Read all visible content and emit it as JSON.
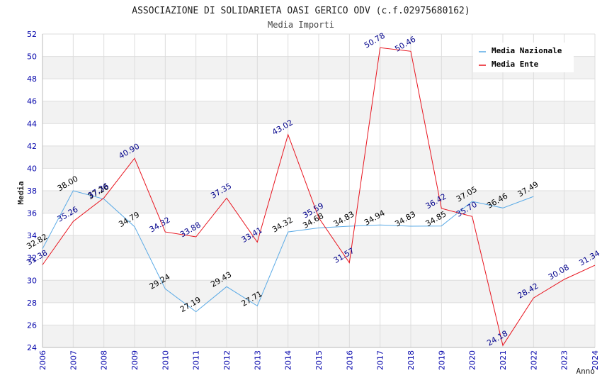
{
  "chart_data": {
    "type": "line",
    "title": "ASSOCIAZIONE DI SOLIDARIETA OASI GERICO ODV (c.f.02975680162)",
    "subtitle": "Media Importi",
    "xlabel": "Anno",
    "ylabel": "Media",
    "ylim": [
      24,
      52
    ],
    "yticks": [
      "24",
      "26",
      "28",
      "30",
      "32",
      "34",
      "36",
      "38",
      "40",
      "42",
      "44",
      "46",
      "48",
      "50",
      "52"
    ],
    "x": [
      "2006",
      "2007",
      "2008",
      "2009",
      "2010",
      "2011",
      "2012",
      "2013",
      "2014",
      "2015",
      "2016",
      "2017",
      "2018",
      "2019",
      "2020",
      "2021",
      "2022",
      "2023",
      "2024"
    ],
    "grid": true,
    "legend_position": "top-right",
    "series": [
      {
        "name": "Media Nazionale",
        "color": "#5aaae6",
        "label_color": "#000000",
        "x": [
          "2006",
          "2007",
          "2008",
          "2009",
          "2010",
          "2011",
          "2012",
          "2013",
          "2014",
          "2015",
          "2016",
          "2017",
          "2018",
          "2019",
          "2020",
          "2021",
          "2022"
        ],
        "values": [
          32.82,
          38.0,
          37.26,
          34.79,
          29.24,
          27.19,
          29.43,
          27.71,
          34.32,
          34.68,
          34.83,
          34.94,
          34.83,
          34.85,
          37.05,
          36.46,
          37.49
        ],
        "labels": [
          "32.82",
          "38.00",
          "37.26",
          "34.79",
          "29.24",
          "27.19",
          "29.43",
          "27.71",
          "34.32",
          "34.68",
          "34.83",
          "34.94",
          "34.83",
          "34.85",
          "37.05",
          "36.46",
          "37.49"
        ]
      },
      {
        "name": "Media Ente",
        "color": "#e8141e",
        "label_color": "#00008b",
        "x": [
          "2006",
          "2007",
          "2008",
          "2009",
          "2010",
          "2011",
          "2012",
          "2013",
          "2014",
          "2015",
          "2016",
          "2017",
          "2018",
          "2019",
          "2020",
          "2021",
          "2022",
          "2023",
          "2024"
        ],
        "values": [
          31.38,
          35.26,
          37.36,
          40.9,
          34.32,
          33.88,
          37.35,
          33.41,
          43.02,
          35.59,
          31.57,
          50.78,
          50.46,
          36.42,
          35.7,
          24.18,
          28.42,
          30.08,
          31.34
        ],
        "labels": [
          "31.38",
          "35.26",
          "37.36",
          "40.90",
          "34.32",
          "33.88",
          "37.35",
          "33.41",
          "43.02",
          "35.59",
          "31.57",
          "50.78",
          "50.46",
          "36.42",
          "35.70",
          "24.18",
          "28.42",
          "30.08",
          "31.34"
        ]
      }
    ]
  }
}
